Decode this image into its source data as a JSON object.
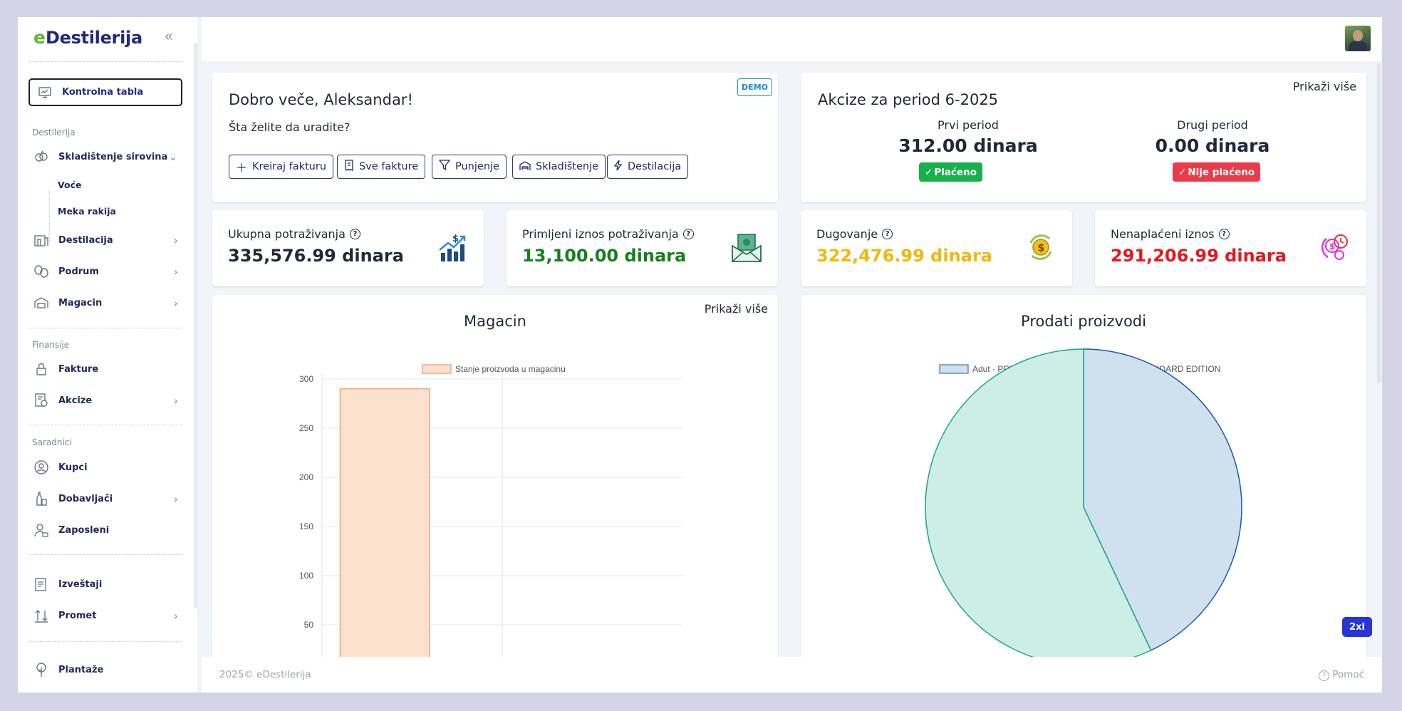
{
  "brand": {
    "logo_e": "e",
    "logo_text": "Destilerija"
  },
  "sidebar": {
    "active": "Kontrolna tabla",
    "sections": {
      "destilerija": "Destilerija",
      "finansije": "Finansije",
      "saradnici": "Saradnici"
    },
    "items": {
      "skladistenje": "Skladištenje sirovina",
      "voce": "Voće",
      "meka_rakija": "Meka rakija",
      "destilacija": "Destilacija",
      "podrum": "Podrum",
      "magacin": "Magacin",
      "fakture": "Fakture",
      "akcize": "Akcize",
      "kupci": "Kupci",
      "dobavljaci": "Dobavljači",
      "zaposleni": "Zaposleni",
      "izvestaji": "Izveštaji",
      "promet": "Promet",
      "plantaze": "Plantaže"
    }
  },
  "welcome": {
    "greeting": "Dobro veče, Aleksandar!",
    "question": "Šta želite da uradite?",
    "badge": "DEMO",
    "actions": [
      "Kreiraj fakturu",
      "Sve fakture",
      "Punjenje",
      "Skladištenje",
      "Destilacija"
    ]
  },
  "akcize": {
    "title": "Akcize za period 6-2025",
    "more": "Prikaži više",
    "first_label": "Prvi period",
    "first_value": "312.00 dinara",
    "first_status": "Plaćeno",
    "second_label": "Drugi period",
    "second_value": "0.00 dinara",
    "second_status": "Nije plaćeno",
    "colors": {
      "paid": "#18b04b",
      "unpaid": "#ea3b4b"
    }
  },
  "stats": [
    {
      "title": "Ukupna potraživanja",
      "value": "335,576.99 dinara",
      "color": "#1e293b",
      "icon": "chart-growth-icon"
    },
    {
      "title": "Primljeni iznos potraživanja",
      "value": "13,100.00 dinara",
      "color": "#15801e",
      "icon": "money-envelope-icon"
    },
    {
      "title": "Dugovanje",
      "value": "322,476.99 dinara",
      "color": "#f2b70f",
      "icon": "coin-cycle-icon"
    },
    {
      "title": "Nenaplaćeni iznos",
      "value": "291,206.99 dinara",
      "color": "#e8171c",
      "icon": "money-clock-icon"
    }
  ],
  "magacin_card": {
    "title": "Magacin",
    "more": "Prikaži više"
  },
  "prodati_card": {
    "title": "Prodati proizvodi"
  },
  "chart_data": [
    {
      "type": "bar",
      "title": "Magacin",
      "series": [
        {
          "name": "Stanje proizvoda u magacinu",
          "values": [
            290,
            null
          ]
        }
      ],
      "yticks": [
        50,
        100,
        150,
        200,
        250,
        300
      ],
      "ylim": [
        0,
        310
      ],
      "colors": {
        "fill": "#fde1cf",
        "stroke": "#ee8440"
      }
    },
    {
      "type": "pie",
      "title": "Prodati proizvodi",
      "labels": [
        "Adut - PREMIUM EDITION",
        "Adut - STANDARD EDITION"
      ],
      "values": [
        43,
        57
      ],
      "colors": [
        "#cfe1ef",
        "#cdeee7"
      ],
      "stroke_colors": [
        "#1a5aa8",
        "#19a882"
      ]
    }
  ],
  "footer": {
    "left": "2025©   eDestilerija",
    "right": "Pomoć"
  },
  "breakpoint_badge": "2xl"
}
